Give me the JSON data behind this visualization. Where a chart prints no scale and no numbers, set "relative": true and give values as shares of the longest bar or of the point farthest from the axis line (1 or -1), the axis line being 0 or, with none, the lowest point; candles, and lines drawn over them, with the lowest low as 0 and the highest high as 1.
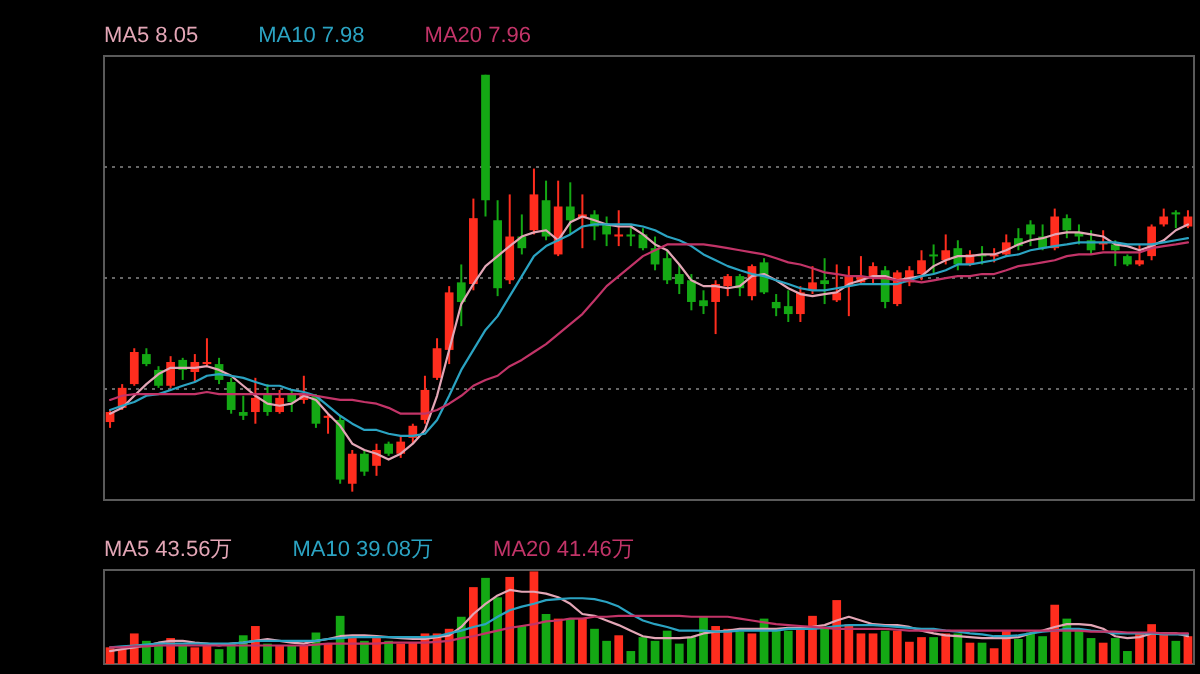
{
  "chart_data": [
    {
      "type": "candlestick",
      "relative": true,
      "grid": "y",
      "legend": "top left",
      "categories": [
        null,
        null,
        null,
        null,
        null,
        null,
        null,
        null,
        null,
        null,
        null,
        null,
        null,
        null,
        null,
        null,
        null,
        null,
        null,
        null,
        null,
        null,
        null,
        null,
        null,
        null,
        null,
        null,
        null,
        null,
        null,
        null,
        null,
        null,
        null,
        null,
        null,
        null,
        null,
        null,
        null,
        null,
        null,
        null,
        null,
        null,
        null,
        null,
        null,
        null,
        null,
        null,
        null,
        null,
        null,
        null,
        null,
        null,
        null,
        null,
        null,
        null,
        null,
        null,
        null,
        null,
        null,
        null,
        null,
        null,
        null,
        null,
        null,
        null,
        null,
        null,
        null,
        null,
        null,
        null,
        null,
        null,
        null,
        null,
        null,
        null,
        null,
        null,
        null,
        null
      ],
      "ohlc": [
        [
          0.167,
          0.196,
          0.153,
          0.191
        ],
        [
          0.201,
          0.258,
          0.196,
          0.249
        ],
        [
          0.258,
          0.344,
          0.254,
          0.335
        ],
        [
          0.33,
          0.344,
          0.301,
          0.306
        ],
        [
          0.292,
          0.301,
          0.249,
          0.254
        ],
        [
          0.254,
          0.325,
          0.249,
          0.311
        ],
        [
          0.316,
          0.321,
          0.268,
          0.292
        ],
        [
          0.287,
          0.33,
          0.263,
          0.311
        ],
        [
          0.306,
          0.368,
          0.301,
          0.311
        ],
        [
          0.306,
          0.321,
          0.258,
          0.268
        ],
        [
          0.263,
          0.273,
          0.187,
          0.196
        ],
        [
          0.191,
          0.23,
          0.172,
          0.182
        ],
        [
          0.191,
          0.273,
          0.163,
          0.225
        ],
        [
          0.234,
          0.258,
          0.182,
          0.191
        ],
        [
          0.191,
          0.244,
          0.187,
          0.225
        ],
        [
          0.234,
          0.244,
          0.191,
          0.215
        ],
        [
          0.22,
          0.278,
          0.211,
          0.234
        ],
        [
          0.23,
          0.234,
          0.153,
          0.163
        ],
        [
          0.177,
          0.187,
          0.139,
          0.182
        ],
        [
          0.172,
          0.182,
          0.019,
          0.029
        ],
        [
          0.019,
          0.1,
          0,
          0.091
        ],
        [
          0.091,
          0.1,
          0.038,
          0.048
        ],
        [
          0.062,
          0.115,
          0.038,
          0.1
        ],
        [
          0.115,
          0.12,
          0.086,
          0.091
        ],
        [
          0.091,
          0.134,
          0.081,
          0.12
        ],
        [
          0.129,
          0.163,
          0.115,
          0.158
        ],
        [
          0.172,
          0.278,
          0.163,
          0.244
        ],
        [
          0.273,
          0.368,
          0.268,
          0.344
        ],
        [
          0.34,
          0.493,
          0.306,
          0.478
        ],
        [
          0.502,
          0.545,
          0.397,
          0.455
        ],
        [
          0.498,
          0.703,
          0.483,
          0.656
        ],
        [
          1,
          1,
          0.66,
          0.699
        ],
        [
          0.651,
          0.699,
          0.469,
          0.488
        ],
        [
          0.507,
          0.713,
          0.498,
          0.612
        ],
        [
          0.612,
          0.665,
          0.569,
          0.584
        ],
        [
          0.627,
          0.775,
          0.617,
          0.713
        ],
        [
          0.699,
          0.746,
          0.603,
          0.612
        ],
        [
          0.569,
          0.746,
          0.565,
          0.684
        ],
        [
          0.684,
          0.742,
          0.617,
          0.651
        ],
        [
          0.656,
          0.713,
          0.584,
          0.665
        ],
        [
          0.665,
          0.675,
          0.603,
          0.636
        ],
        [
          0.641,
          0.66,
          0.589,
          0.617
        ],
        [
          0.612,
          0.675,
          0.589,
          0.617
        ],
        [
          0.617,
          0.641,
          0.589,
          0.612
        ],
        [
          0.617,
          0.632,
          0.579,
          0.584
        ],
        [
          0.584,
          0.612,
          0.531,
          0.545
        ],
        [
          0.56,
          0.579,
          0.498,
          0.507
        ],
        [
          0.522,
          0.545,
          0.474,
          0.498
        ],
        [
          0.507,
          0.522,
          0.435,
          0.455
        ],
        [
          0.459,
          0.483,
          0.426,
          0.445
        ],
        [
          0.455,
          0.507,
          0.378,
          0.498
        ],
        [
          0.493,
          0.522,
          0.469,
          0.517
        ],
        [
          0.517,
          0.522,
          0.469,
          0.488
        ],
        [
          0.469,
          0.545,
          0.459,
          0.541
        ],
        [
          0.55,
          0.56,
          0.474,
          0.478
        ],
        [
          0.455,
          0.474,
          0.421,
          0.44
        ],
        [
          0.445,
          0.483,
          0.407,
          0.426
        ],
        [
          0.426,
          0.493,
          0.407,
          0.478
        ],
        [
          0.483,
          0.541,
          0.474,
          0.502
        ],
        [
          0.507,
          0.56,
          0.45,
          0.498
        ],
        [
          0.459,
          0.545,
          0.455,
          0.478
        ],
        [
          0.493,
          0.541,
          0.421,
          0.517
        ],
        [
          0.502,
          0.565,
          0.498,
          0.517
        ],
        [
          0.517,
          0.55,
          0.498,
          0.541
        ],
        [
          0.531,
          0.541,
          0.44,
          0.455
        ],
        [
          0.45,
          0.531,
          0.445,
          0.526
        ],
        [
          0.502,
          0.541,
          0.493,
          0.531
        ],
        [
          0.522,
          0.579,
          0.507,
          0.555
        ],
        [
          0.569,
          0.593,
          0.522,
          0.565
        ],
        [
          0.555,
          0.617,
          0.545,
          0.579
        ],
        [
          0.584,
          0.603,
          0.531,
          0.545
        ],
        [
          0.545,
          0.579,
          0.541,
          0.569
        ],
        [
          0.569,
          0.589,
          0.545,
          0.565
        ],
        [
          0.565,
          0.584,
          0.55,
          0.569
        ],
        [
          0.569,
          0.617,
          0.565,
          0.598
        ],
        [
          0.608,
          0.632,
          0.579,
          0.589
        ],
        [
          0.641,
          0.651,
          0.589,
          0.617
        ],
        [
          0.612,
          0.641,
          0.579,
          0.584
        ],
        [
          0.584,
          0.679,
          0.579,
          0.66
        ],
        [
          0.656,
          0.665,
          0.608,
          0.627
        ],
        [
          0.622,
          0.641,
          0.593,
          0.612
        ],
        [
          0.603,
          0.627,
          0.569,
          0.579
        ],
        [
          0.593,
          0.627,
          0.579,
          0.598
        ],
        [
          0.593,
          0.603,
          0.541,
          0.579
        ],
        [
          0.565,
          0.569,
          0.541,
          0.545
        ],
        [
          0.545,
          0.593,
          0.541,
          0.555
        ],
        [
          0.565,
          0.641,
          0.555,
          0.636
        ],
        [
          0.641,
          0.679,
          0.636,
          0.66
        ],
        [
          0.67,
          0.675,
          0.632,
          0.665
        ],
        [
          0.636,
          0.675,
          0.632,
          0.66
        ]
      ],
      "colors": [
        "#ff2d1e",
        "#ff2d1e",
        "#ff2d1e",
        "#14a814",
        "#14a814",
        "#ff2d1e",
        "#14a814",
        "#ff2d1e",
        "#ff2d1e",
        "#14a814",
        "#14a814",
        "#14a814",
        "#ff2d1e",
        "#14a814",
        "#ff2d1e",
        "#14a814",
        "#ff2d1e",
        "#14a814",
        "#ff2d1e",
        "#14a814",
        "#ff2d1e",
        "#14a814",
        "#ff2d1e",
        "#14a814",
        "#ff2d1e",
        "#ff2d1e",
        "#ff2d1e",
        "#ff2d1e",
        "#ff2d1e",
        "#14a814",
        "#ff2d1e",
        "#14a814",
        "#14a814",
        "#ff2d1e",
        "#14a814",
        "#ff2d1e",
        "#14a814",
        "#ff2d1e",
        "#14a814",
        "#ff2d1e",
        "#14a814",
        "#14a814",
        "#ff2d1e",
        "#14a814",
        "#14a814",
        "#14a814",
        "#14a814",
        "#14a814",
        "#14a814",
        "#14a814",
        "#ff2d1e",
        "#ff2d1e",
        "#14a814",
        "#ff2d1e",
        "#14a814",
        "#14a814",
        "#14a814",
        "#ff2d1e",
        "#ff2d1e",
        "#14a814",
        "#ff2d1e",
        "#ff2d1e",
        "#ff2d1e",
        "#ff2d1e",
        "#14a814",
        "#ff2d1e",
        "#ff2d1e",
        "#ff2d1e",
        "#14a814",
        "#ff2d1e",
        "#14a814",
        "#ff2d1e",
        "#14a814",
        "#ff2d1e",
        "#ff2d1e",
        "#14a814",
        "#14a814",
        "#14a814",
        "#ff2d1e",
        "#14a814",
        "#14a814",
        "#14a814",
        "#ff2d1e",
        "#14a814",
        "#14a814",
        "#ff2d1e",
        "#ff2d1e",
        "#ff2d1e",
        "#14a814",
        "#ff2d1e"
      ],
      "series": [
        {
          "type": "line",
          "name": "MA5 8.05",
          "color": "#e3a6b6",
          "values": [
            0.187,
            0.201,
            0.23,
            0.258,
            0.282,
            0.297,
            0.297,
            0.297,
            0.301,
            0.292,
            0.278,
            0.254,
            0.23,
            0.211,
            0.206,
            0.211,
            0.23,
            0.22,
            0.187,
            0.158,
            0.115,
            0.1,
            0.091,
            0.077,
            0.091,
            0.115,
            0.148,
            0.23,
            0.34,
            0.45,
            0.498,
            0.541,
            0.565,
            0.589,
            0.612,
            0.622,
            0.627,
            0.603,
            0.646,
            0.66,
            0.651,
            0.641,
            0.636,
            0.636,
            0.617,
            0.593,
            0.579,
            0.545,
            0.507,
            0.493,
            0.493,
            0.488,
            0.493,
            0.517,
            0.522,
            0.507,
            0.488,
            0.474,
            0.469,
            0.474,
            0.478,
            0.498,
            0.507,
            0.517,
            0.517,
            0.507,
            0.512,
            0.517,
            0.541,
            0.555,
            0.565,
            0.565,
            0.569,
            0.569,
            0.579,
            0.593,
            0.603,
            0.608,
            0.617,
            0.622,
            0.622,
            0.617,
            0.612,
            0.593,
            0.589,
            0.579,
            0.589,
            0.603,
            0.627,
            0.641
          ]
        },
        {
          "type": "line",
          "name": "MA10 7.98",
          "color": "#2ba3c2",
          "values": [
            0.196,
            0.206,
            0.215,
            0.23,
            0.234,
            0.244,
            0.254,
            0.263,
            0.278,
            0.282,
            0.278,
            0.273,
            0.263,
            0.254,
            0.254,
            0.244,
            0.239,
            0.23,
            0.206,
            0.182,
            0.163,
            0.148,
            0.148,
            0.139,
            0.134,
            0.134,
            0.139,
            0.172,
            0.23,
            0.292,
            0.34,
            0.388,
            0.421,
            0.469,
            0.517,
            0.565,
            0.589,
            0.603,
            0.617,
            0.636,
            0.641,
            0.641,
            0.641,
            0.641,
            0.636,
            0.627,
            0.612,
            0.603,
            0.589,
            0.569,
            0.555,
            0.541,
            0.531,
            0.522,
            0.517,
            0.507,
            0.498,
            0.488,
            0.483,
            0.483,
            0.488,
            0.493,
            0.498,
            0.498,
            0.498,
            0.498,
            0.507,
            0.517,
            0.522,
            0.531,
            0.545,
            0.545,
            0.55,
            0.555,
            0.565,
            0.569,
            0.579,
            0.584,
            0.589,
            0.593,
            0.598,
            0.598,
            0.598,
            0.598,
            0.593,
            0.593,
            0.593,
            0.598,
            0.603,
            0.608
          ]
        },
        {
          "type": "line",
          "name": "MA20 7.96",
          "color": "#c23468",
          "values": [
            0.22,
            0.23,
            0.234,
            0.234,
            0.234,
            0.234,
            0.234,
            0.234,
            0.239,
            0.234,
            0.234,
            0.234,
            0.234,
            0.234,
            0.234,
            0.234,
            0.234,
            0.23,
            0.225,
            0.22,
            0.22,
            0.215,
            0.211,
            0.201,
            0.187,
            0.187,
            0.187,
            0.196,
            0.211,
            0.23,
            0.254,
            0.268,
            0.278,
            0.301,
            0.316,
            0.335,
            0.354,
            0.378,
            0.402,
            0.426,
            0.459,
            0.493,
            0.517,
            0.541,
            0.565,
            0.579,
            0.593,
            0.593,
            0.593,
            0.593,
            0.589,
            0.584,
            0.579,
            0.574,
            0.569,
            0.56,
            0.55,
            0.545,
            0.536,
            0.526,
            0.522,
            0.517,
            0.517,
            0.512,
            0.512,
            0.507,
            0.507,
            0.502,
            0.507,
            0.512,
            0.517,
            0.517,
            0.522,
            0.522,
            0.531,
            0.541,
            0.545,
            0.55,
            0.555,
            0.565,
            0.569,
            0.569,
            0.574,
            0.574,
            0.574,
            0.574,
            0.584,
            0.589,
            0.593,
            0.598
          ]
        }
      ]
    },
    {
      "type": "bar",
      "relative": true,
      "legend": "top left",
      "categories": [
        null,
        null,
        null,
        null,
        null,
        null,
        null,
        null,
        null,
        null,
        null,
        null,
        null,
        null,
        null,
        null,
        null,
        null,
        null,
        null,
        null,
        null,
        null,
        null,
        null,
        null,
        null,
        null,
        null,
        null,
        null,
        null,
        null,
        null,
        null,
        null,
        null,
        null,
        null,
        null,
        null,
        null,
        null,
        null,
        null,
        null,
        null,
        null,
        null,
        null,
        null,
        null,
        null,
        null,
        null,
        null,
        null,
        null,
        null,
        null,
        null,
        null,
        null,
        null,
        null,
        null,
        null,
        null,
        null,
        null,
        null,
        null,
        null,
        null,
        null,
        null,
        null,
        null,
        null,
        null,
        null,
        null,
        null,
        null,
        null,
        null,
        null,
        null,
        null,
        null
      ],
      "values": [
        0.18,
        0.16,
        0.33,
        0.25,
        0.23,
        0.28,
        0.2,
        0.18,
        0.2,
        0.16,
        0.22,
        0.31,
        0.41,
        0.22,
        0.2,
        0.2,
        0.2,
        0.34,
        0.22,
        0.52,
        0.28,
        0.25,
        0.28,
        0.25,
        0.22,
        0.23,
        0.33,
        0.33,
        0.38,
        0.51,
        0.83,
        0.93,
        0.72,
        0.94,
        0.41,
        1.0,
        0.54,
        0.49,
        0.49,
        0.49,
        0.38,
        0.25,
        0.31,
        0.14,
        0.29,
        0.25,
        0.36,
        0.22,
        0.29,
        0.51,
        0.41,
        0.38,
        0.35,
        0.33,
        0.49,
        0.38,
        0.36,
        0.4,
        0.52,
        0.4,
        0.69,
        0.43,
        0.33,
        0.33,
        0.36,
        0.36,
        0.24,
        0.29,
        0.29,
        0.33,
        0.33,
        0.23,
        0.23,
        0.17,
        0.36,
        0.27,
        0.34,
        0.3,
        0.64,
        0.49,
        0.38,
        0.28,
        0.23,
        0.28,
        0.14,
        0.33,
        0.43,
        0.33,
        0.25,
        0.3
      ],
      "colors": [
        "#ff2d1e",
        "#ff2d1e",
        "#ff2d1e",
        "#14a814",
        "#14a814",
        "#ff2d1e",
        "#14a814",
        "#ff2d1e",
        "#ff2d1e",
        "#14a814",
        "#14a814",
        "#14a814",
        "#ff2d1e",
        "#14a814",
        "#ff2d1e",
        "#14a814",
        "#ff2d1e",
        "#14a814",
        "#ff2d1e",
        "#14a814",
        "#ff2d1e",
        "#14a814",
        "#ff2d1e",
        "#14a814",
        "#ff2d1e",
        "#ff2d1e",
        "#ff2d1e",
        "#ff2d1e",
        "#ff2d1e",
        "#14a814",
        "#ff2d1e",
        "#14a814",
        "#14a814",
        "#ff2d1e",
        "#14a814",
        "#ff2d1e",
        "#14a814",
        "#ff2d1e",
        "#14a814",
        "#ff2d1e",
        "#14a814",
        "#14a814",
        "#ff2d1e",
        "#14a814",
        "#14a814",
        "#14a814",
        "#14a814",
        "#14a814",
        "#14a814",
        "#14a814",
        "#ff2d1e",
        "#ff2d1e",
        "#14a814",
        "#ff2d1e",
        "#14a814",
        "#14a814",
        "#14a814",
        "#ff2d1e",
        "#ff2d1e",
        "#14a814",
        "#ff2d1e",
        "#ff2d1e",
        "#ff2d1e",
        "#ff2d1e",
        "#14a814",
        "#ff2d1e",
        "#ff2d1e",
        "#ff2d1e",
        "#14a814",
        "#ff2d1e",
        "#14a814",
        "#ff2d1e",
        "#14a814",
        "#ff2d1e",
        "#ff2d1e",
        "#14a814",
        "#14a814",
        "#14a814",
        "#ff2d1e",
        "#14a814",
        "#14a814",
        "#14a814",
        "#ff2d1e",
        "#14a814",
        "#14a814",
        "#ff2d1e",
        "#ff2d1e",
        "#ff2d1e",
        "#14a814",
        "#ff2d1e"
      ],
      "series": [
        {
          "type": "line",
          "name": "MA5 43.56万",
          "color": "#e3a6b6",
          "values": [
            0.14,
            0.16,
            0.18,
            0.2,
            0.23,
            0.25,
            0.25,
            0.23,
            0.22,
            0.2,
            0.22,
            0.23,
            0.25,
            0.27,
            0.25,
            0.23,
            0.22,
            0.25,
            0.27,
            0.3,
            0.31,
            0.31,
            0.3,
            0.29,
            0.28,
            0.27,
            0.27,
            0.29,
            0.31,
            0.4,
            0.54,
            0.65,
            0.74,
            0.8,
            0.78,
            0.78,
            0.76,
            0.72,
            0.65,
            0.54,
            0.52,
            0.47,
            0.42,
            0.36,
            0.3,
            0.28,
            0.28,
            0.28,
            0.29,
            0.33,
            0.35,
            0.36,
            0.38,
            0.38,
            0.38,
            0.38,
            0.39,
            0.39,
            0.4,
            0.42,
            0.47,
            0.51,
            0.47,
            0.43,
            0.42,
            0.42,
            0.4,
            0.36,
            0.33,
            0.31,
            0.3,
            0.29,
            0.28,
            0.28,
            0.28,
            0.29,
            0.33,
            0.36,
            0.4,
            0.43,
            0.43,
            0.42,
            0.38,
            0.3,
            0.28,
            0.29,
            0.33,
            0.33,
            0.33,
            0.3
          ]
        },
        {
          "type": "line",
          "name": "MA10 39.08万",
          "color": "#2ba3c2",
          "values": [
            0.18,
            0.19,
            0.2,
            0.21,
            0.22,
            0.22,
            0.22,
            0.22,
            0.22,
            0.22,
            0.22,
            0.23,
            0.25,
            0.25,
            0.25,
            0.25,
            0.25,
            0.25,
            0.27,
            0.28,
            0.29,
            0.29,
            0.29,
            0.29,
            0.29,
            0.29,
            0.29,
            0.3,
            0.33,
            0.36,
            0.4,
            0.43,
            0.51,
            0.58,
            0.62,
            0.65,
            0.69,
            0.7,
            0.71,
            0.71,
            0.7,
            0.67,
            0.62,
            0.54,
            0.47,
            0.43,
            0.4,
            0.36,
            0.36,
            0.36,
            0.35,
            0.35,
            0.36,
            0.36,
            0.36,
            0.36,
            0.38,
            0.38,
            0.38,
            0.39,
            0.41,
            0.42,
            0.42,
            0.42,
            0.41,
            0.4,
            0.39,
            0.38,
            0.38,
            0.36,
            0.35,
            0.33,
            0.32,
            0.3,
            0.3,
            0.31,
            0.33,
            0.35,
            0.36,
            0.38,
            0.38,
            0.36,
            0.35,
            0.33,
            0.33,
            0.33,
            0.33,
            0.32,
            0.32,
            0.32
          ]
        },
        {
          "type": "line",
          "name": "MA20 41.46万",
          "color": "#c23468",
          "values": [
            0.18,
            0.18,
            0.19,
            0.19,
            0.2,
            0.2,
            0.2,
            0.2,
            0.2,
            0.2,
            0.2,
            0.2,
            0.2,
            0.2,
            0.2,
            0.2,
            0.2,
            0.21,
            0.22,
            0.22,
            0.22,
            0.22,
            0.22,
            0.23,
            0.23,
            0.23,
            0.23,
            0.24,
            0.25,
            0.28,
            0.3,
            0.33,
            0.36,
            0.39,
            0.41,
            0.43,
            0.46,
            0.47,
            0.49,
            0.49,
            0.51,
            0.51,
            0.52,
            0.52,
            0.52,
            0.52,
            0.52,
            0.52,
            0.51,
            0.51,
            0.51,
            0.51,
            0.49,
            0.47,
            0.45,
            0.43,
            0.42,
            0.41,
            0.4,
            0.39,
            0.38,
            0.38,
            0.38,
            0.38,
            0.38,
            0.37,
            0.36,
            0.36,
            0.36,
            0.36,
            0.36,
            0.36,
            0.36,
            0.36,
            0.36,
            0.36,
            0.36,
            0.36,
            0.36,
            0.36,
            0.36,
            0.35,
            0.35,
            0.35,
            0.34,
            0.34,
            0.34,
            0.33,
            0.33,
            0.33
          ]
        }
      ]
    }
  ]
}
